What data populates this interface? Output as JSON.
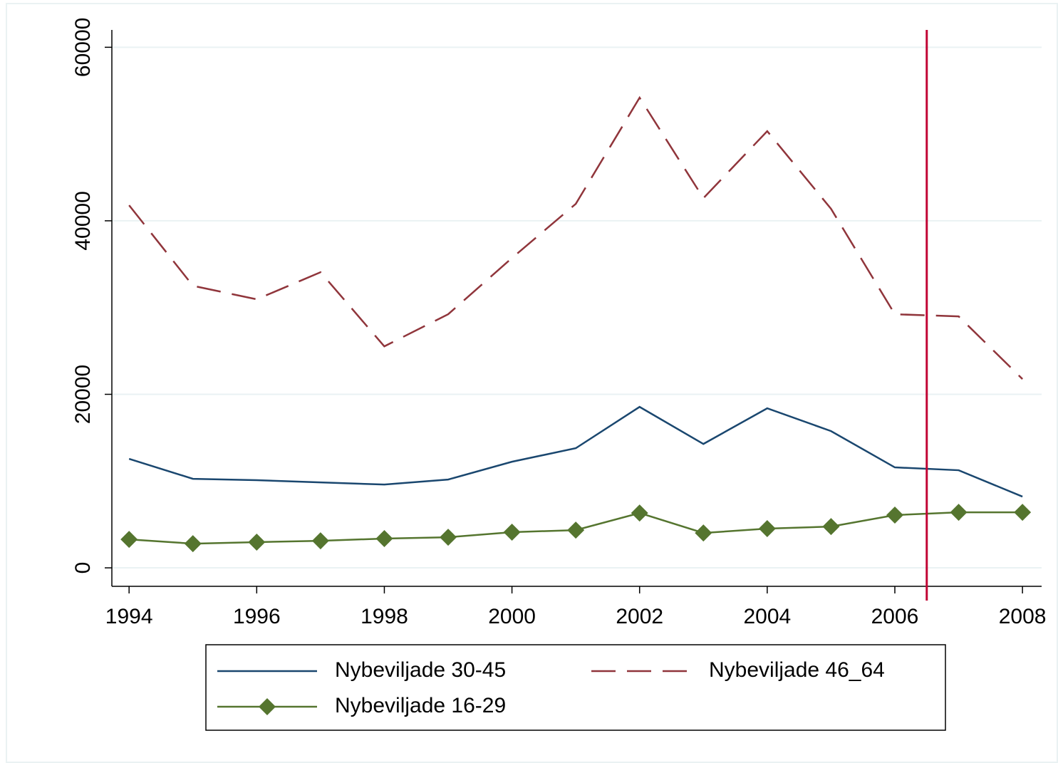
{
  "chart_data": {
    "type": "line",
    "x": [
      1994,
      1995,
      1996,
      1997,
      1998,
      1999,
      2000,
      2001,
      2002,
      2003,
      2004,
      2005,
      2006,
      2007,
      2008
    ],
    "series": [
      {
        "name": "Nybeviljade 30-45",
        "color": "#1a476f",
        "dash": "solid",
        "marker": "none",
        "values": [
          12560,
          10260,
          10100,
          9850,
          9600,
          10180,
          12230,
          13790,
          18550,
          14280,
          18390,
          15760,
          11580,
          11250,
          8210
        ]
      },
      {
        "name": "Nybeviljade 46_64",
        "color": "#90353b",
        "dash": "dashed",
        "marker": "none",
        "values": [
          41790,
          32510,
          30950,
          34070,
          25530,
          29230,
          35710,
          41950,
          54190,
          42610,
          50330,
          41380,
          29230,
          28980,
          21760
        ]
      },
      {
        "name": "Nybeviljade 16-29",
        "color": "#55752f",
        "dash": "solid",
        "marker": "diamond",
        "values": [
          3280,
          2790,
          2960,
          3120,
          3370,
          3530,
          4110,
          4350,
          6320,
          4020,
          4520,
          4760,
          6080,
          6400,
          6400
        ]
      }
    ],
    "xlim": [
      1993.73,
      2008.3
    ],
    "xticks": [
      1994,
      1996,
      1998,
      2000,
      2002,
      2004,
      2006,
      2008
    ],
    "ylim": [
      -2130,
      62000
    ],
    "yticks": [
      0,
      20000,
      40000,
      60000
    ],
    "grid": true,
    "legend": "bottom",
    "vline": {
      "x": 2006.5,
      "color": "#c10534"
    }
  }
}
